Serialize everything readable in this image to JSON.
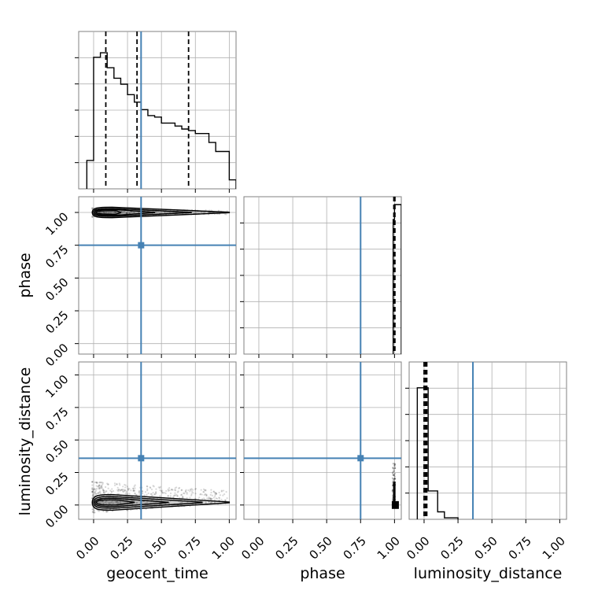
{
  "chart_data": {
    "type": "corner",
    "parameters": [
      "geocent_time",
      "phase",
      "luminosity_distance"
    ],
    "ticks": {
      "geocent_time": [
        "0.00",
        "0.25",
        "0.50",
        "0.75",
        "1.00"
      ],
      "phase": [
        "0.00",
        "0.25",
        "0.50",
        "0.75",
        "1.00"
      ],
      "luminosity_distance": [
        "0.00",
        "0.25",
        "0.50",
        "0.75",
        "1.00"
      ]
    },
    "xlim": {
      "geocent_time": [
        -0.11,
        1.05
      ],
      "phase": [
        -0.11,
        1.05
      ],
      "luminosity_distance": [
        -0.11,
        1.05
      ]
    },
    "ylim": {
      "phase": [
        -0.08,
        1.12
      ],
      "luminosity_distance": [
        -0.11,
        1.1
      ]
    },
    "truth": {
      "geocent_time": 0.35,
      "phase": 0.75,
      "luminosity_distance": 0.36
    },
    "truth_color": "#4682b4",
    "hist_color": "#000000",
    "grid": true,
    "histograms": {
      "geocent_time": {
        "edges": [
          -0.05,
          0.0,
          0.05,
          0.1,
          0.15,
          0.2,
          0.25,
          0.3,
          0.35,
          0.4,
          0.45,
          0.5,
          0.55,
          0.6,
          0.65,
          0.7,
          0.75,
          0.8,
          0.85,
          0.9,
          0.95,
          1.0,
          1.05
        ],
        "values": [
          0.19,
          0.88,
          0.91,
          0.81,
          0.74,
          0.7,
          0.63,
          0.58,
          0.53,
          0.49,
          0.48,
          0.44,
          0.44,
          0.42,
          0.4,
          0.39,
          0.37,
          0.37,
          0.31,
          0.25,
          0.25,
          0.06
        ],
        "quantiles": [
          0.09,
          0.32,
          0.7
        ]
      },
      "phase": {
        "edges": [
          0.99,
          1.0,
          1.05
        ],
        "values": [
          0.9,
          1.0
        ],
        "quantiles": [
          0.995,
          1.0,
          1.003
        ]
      },
      "luminosity_distance": {
        "edges": [
          -0.05,
          0.0,
          0.03,
          0.1,
          0.15,
          0.2,
          0.25
        ],
        "values": [
          0.88,
          0.88,
          0.19,
          0.05,
          0.01,
          0.01
        ],
        "quantiles": [
          0.0,
          0.01,
          0.02
        ]
      }
    },
    "pairs": [
      {
        "x": "geocent_time",
        "y": "phase",
        "density": "concentrated along y = 1.00, spread across x from 0.00 to 1.00, highest near x = 0.05"
      },
      {
        "x": "geocent_time",
        "y": "luminosity_distance",
        "density": "concentrated along y = 0.00 to 0.05, spread across x from 0.00 to 1.00, highest near x = 0.05"
      },
      {
        "x": "phase",
        "y": "luminosity_distance",
        "density": "concentrated at x = 1.00, y = 0.00 to 0.05"
      }
    ]
  }
}
